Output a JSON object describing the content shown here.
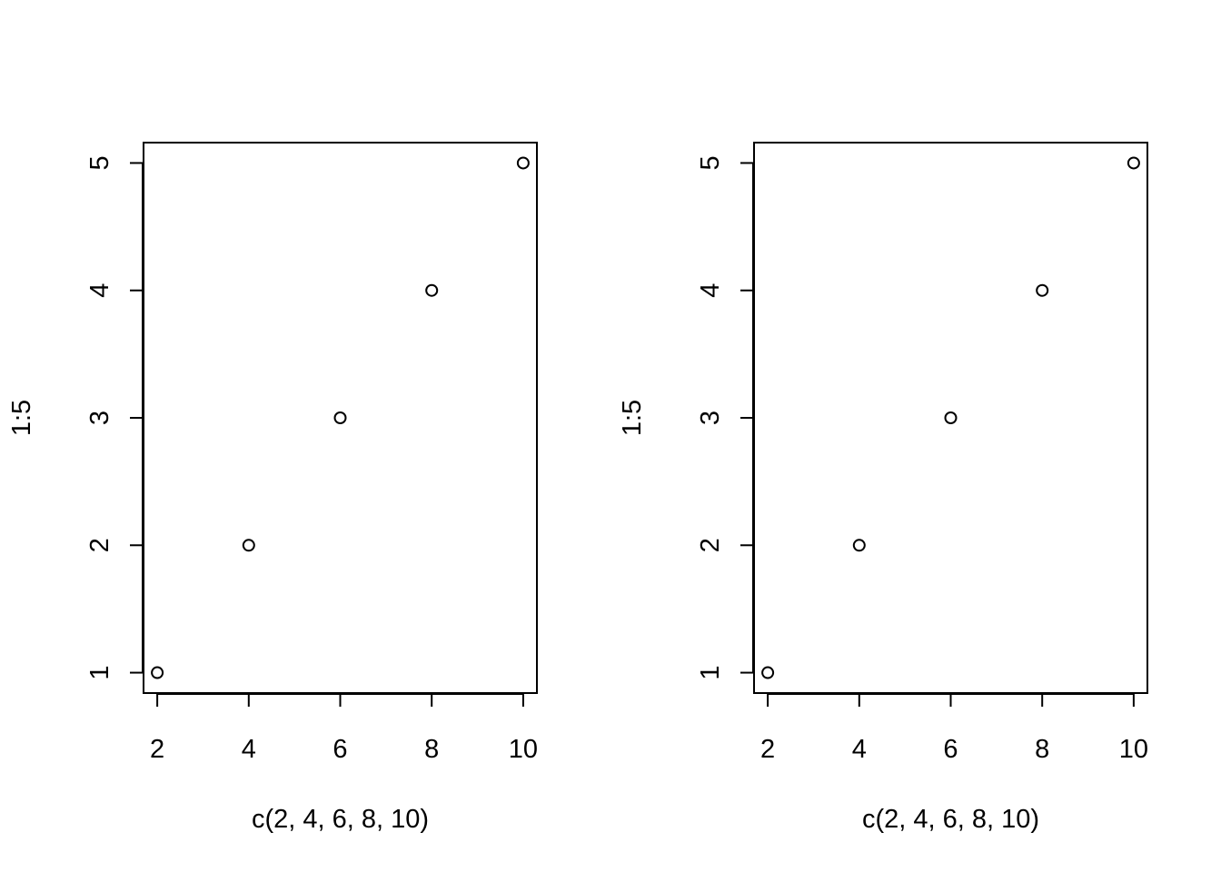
{
  "chart_data": [
    {
      "type": "scatter",
      "title": "",
      "xlabel": "c(2, 4, 6, 8, 10)",
      "ylabel": "1:5",
      "xlim": [
        1.7,
        10.3
      ],
      "ylim": [
        0.84,
        5.16
      ],
      "xticks": [
        2,
        4,
        6,
        8,
        10
      ],
      "yticks": [
        1,
        2,
        3,
        4,
        5
      ],
      "grid": false,
      "marker": "open-circle",
      "color": "#000000",
      "x": [
        2,
        4,
        6,
        8,
        10
      ],
      "y": [
        1,
        2,
        3,
        4,
        5
      ]
    },
    {
      "type": "scatter",
      "title": "",
      "xlabel": "c(2, 4, 6, 8, 10)",
      "ylabel": "1:5",
      "xlim": [
        1.7,
        10.3
      ],
      "ylim": [
        0.84,
        5.16
      ],
      "xticks": [
        2,
        4,
        6,
        8,
        10
      ],
      "yticks": [
        1,
        2,
        3,
        4,
        5
      ],
      "grid": false,
      "marker": "open-circle",
      "color": "#000000",
      "x": [
        2,
        4,
        6,
        8,
        10
      ],
      "y": [
        1,
        2,
        3,
        4,
        5
      ]
    }
  ]
}
